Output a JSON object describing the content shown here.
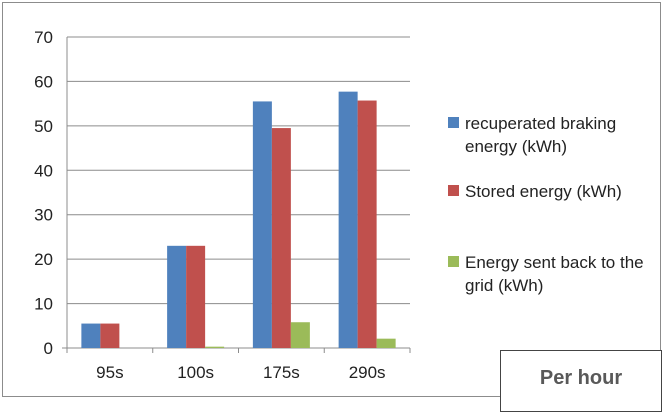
{
  "chart_data": {
    "type": "bar",
    "categories": [
      "95s",
      "100s",
      "175s",
      "290s"
    ],
    "series": [
      {
        "name": "recuperated braking energy (kWh)",
        "values": [
          5.5,
          23,
          55.5,
          57.7
        ],
        "color": "#4f81bd"
      },
      {
        "name": "Stored energy (kWh)",
        "values": [
          5.5,
          23,
          49.5,
          55.7
        ],
        "color": "#c0504d"
      },
      {
        "name": "Energy sent back to the grid (kWh)",
        "values": [
          0,
          0.3,
          5.8,
          2.1
        ],
        "color": "#9bbb59"
      }
    ],
    "y_ticks": [
      0,
      10,
      20,
      30,
      40,
      50,
      60,
      70
    ],
    "ylim": [
      0,
      70
    ],
    "grid": true,
    "legend_position": "right"
  },
  "note": {
    "text": "Per hour"
  }
}
